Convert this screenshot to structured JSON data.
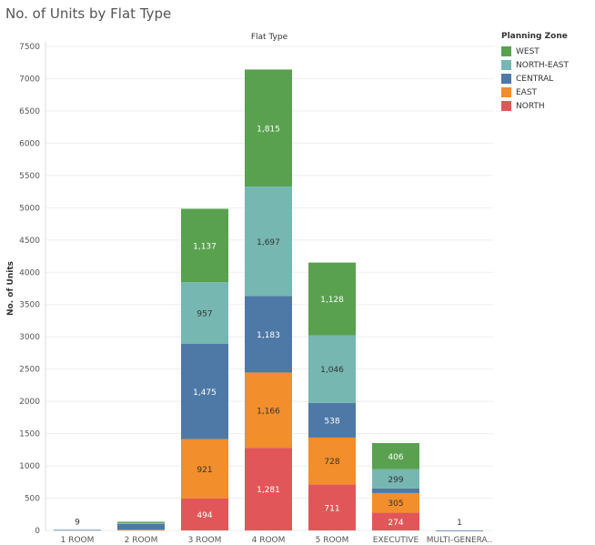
{
  "title": "No. of Units by Flat Type",
  "chart_data": {
    "type": "bar",
    "stacked": true,
    "title": "No. of Units by Flat Type",
    "column_header": "Flat Type",
    "ylabel": "No. of Units",
    "ylim": [
      0,
      7500
    ],
    "yticks": [
      0,
      500,
      1000,
      1500,
      2000,
      2500,
      3000,
      3500,
      4000,
      4500,
      5000,
      5500,
      6000,
      6500,
      7000,
      7500
    ],
    "grid": true,
    "legend_title": "Planning Zone",
    "legend_position": "right",
    "categories": [
      "1 ROOM",
      "2 ROOM",
      "3 ROOM",
      "4 ROOM",
      "5 ROOM",
      "EXECUTIVE",
      "MULTI-GENERA.."
    ],
    "series": [
      {
        "name": "NORTH",
        "color": "#e15759",
        "values": [
          0,
          0,
          494,
          1281,
          711,
          274,
          0
        ],
        "labels": [
          "",
          "",
          "494",
          "1,281",
          "711",
          "274",
          ""
        ]
      },
      {
        "name": "EAST",
        "color": "#f28e2b",
        "values": [
          0,
          10,
          921,
          1166,
          728,
          305,
          0
        ],
        "labels": [
          "",
          "",
          "921",
          "1,166",
          "728",
          "305",
          ""
        ]
      },
      {
        "name": "CENTRAL",
        "color": "#4e79a7",
        "values": [
          9,
          90,
          1475,
          1183,
          538,
          70,
          1
        ],
        "labels": [
          "",
          "",
          "1,475",
          "1,183",
          "538",
          "",
          ""
        ]
      },
      {
        "name": "NORTH-EAST",
        "color": "#76b7b2",
        "values": [
          0,
          15,
          957,
          1697,
          1046,
          299,
          0
        ],
        "labels": [
          "",
          "",
          "957",
          "1,697",
          "1,046",
          "299",
          ""
        ]
      },
      {
        "name": "WEST",
        "color": "#59a14f",
        "values": [
          0,
          20,
          1137,
          1815,
          1128,
          406,
          0
        ],
        "labels": [
          "",
          "",
          "1,137",
          "1,815",
          "1,128",
          "406",
          ""
        ]
      }
    ],
    "totals_labels": [
      "9",
      "",
      "",
      "",
      "",
      "",
      "1"
    ],
    "label_colors": {
      "NORTH": "#ffffff",
      "EAST": "#333333",
      "CENTRAL": "#ffffff",
      "NORTH-EAST": "#333333",
      "WEST": "#ffffff"
    }
  },
  "legend": {
    "title": "Planning Zone",
    "items": [
      {
        "name": "WEST",
        "color": "#59a14f"
      },
      {
        "name": "NORTH-EAST",
        "color": "#76b7b2"
      },
      {
        "name": "CENTRAL",
        "color": "#4e79a7"
      },
      {
        "name": "EAST",
        "color": "#f28e2b"
      },
      {
        "name": "NORTH",
        "color": "#e15759"
      }
    ]
  }
}
